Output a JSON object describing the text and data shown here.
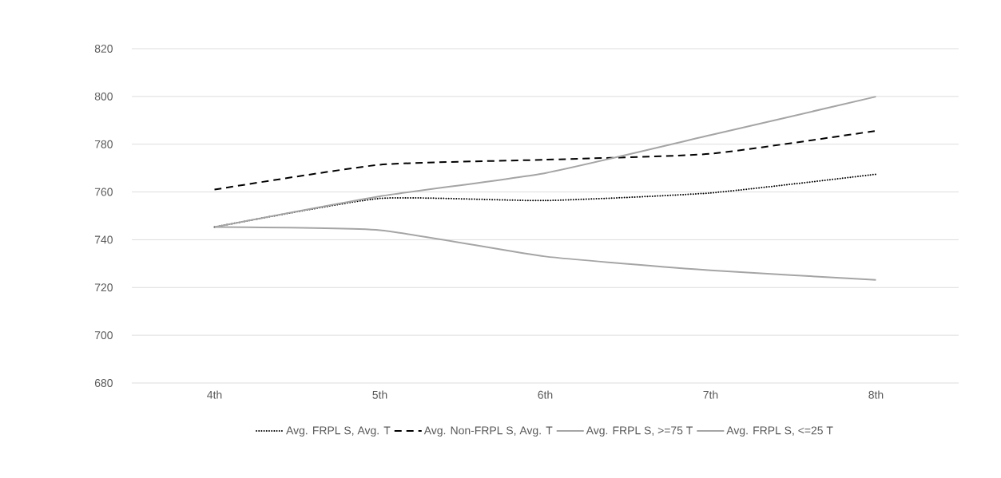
{
  "chart_data": {
    "type": "line",
    "categories": [
      "4th",
      "5th",
      "6th",
      "7th",
      "8th"
    ],
    "series": [
      {
        "name": "Avg. FRPL S, Avg. T",
        "color": "#000000",
        "line_style": "dotted",
        "values": [
          745.3,
          757.3,
          756.4,
          759.6,
          767.4
        ]
      },
      {
        "name": "Avg. Non-FRPL S, Avg. T",
        "color": "#000000",
        "line_style": "dashed",
        "values": [
          761,
          771.4,
          773.5,
          776,
          785.6
        ]
      },
      {
        "name": "Avg. FRPL S, >=75 T",
        "color": "#a5a5a5",
        "line_style": "solid",
        "values": [
          745.3,
          758.2,
          767.9,
          783.8,
          799.9
        ]
      },
      {
        "name": "Avg. FRPL S, <=25 T",
        "color": "#a5a5a5",
        "line_style": "solid",
        "values": [
          745.3,
          744,
          733,
          727.2,
          723.2
        ]
      }
    ],
    "ylim": [
      680,
      820
    ],
    "yticks": [
      680,
      700,
      720,
      740,
      760,
      780,
      800,
      820
    ],
    "grid": "y",
    "legend": "bottom",
    "marker": "none"
  }
}
